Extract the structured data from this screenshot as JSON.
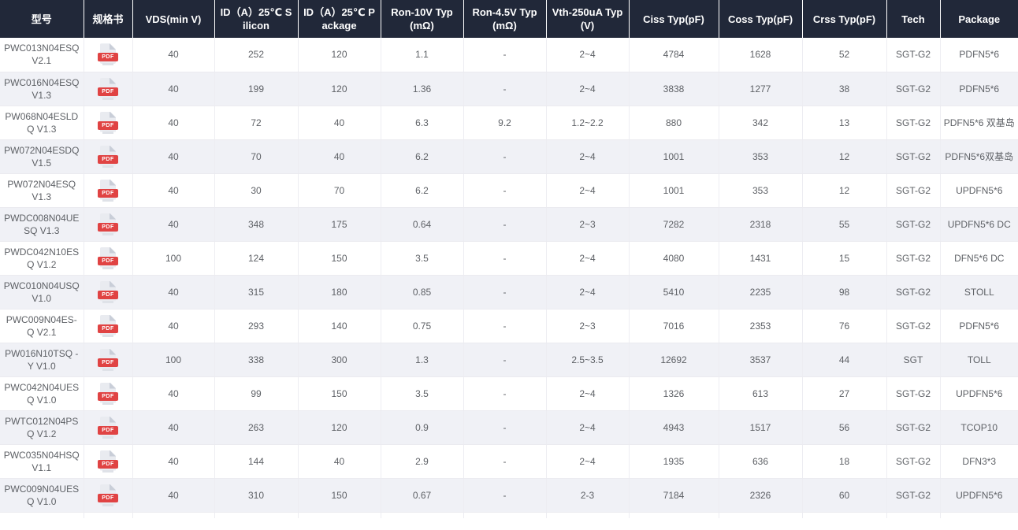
{
  "table": {
    "pdf_icon_label": "PDF",
    "columns": [
      {
        "key": "model",
        "label": "型号"
      },
      {
        "key": "datasheet",
        "label": "规格书"
      },
      {
        "key": "vds",
        "label": "VDS(min V)"
      },
      {
        "key": "id_silicon",
        "label": "ID（A）25℃ Silicon"
      },
      {
        "key": "id_package",
        "label": "ID（A）25℃ Package"
      },
      {
        "key": "ron_10v",
        "label": "Ron-10V Typ(mΩ)"
      },
      {
        "key": "ron_45v",
        "label": "Ron-4.5V Typ(mΩ)"
      },
      {
        "key": "vth",
        "label": "Vth-250uA Typ(V)"
      },
      {
        "key": "ciss",
        "label": "Ciss Typ(pF)"
      },
      {
        "key": "coss",
        "label": "Coss Typ(pF)"
      },
      {
        "key": "crss",
        "label": "Crss Typ(pF)"
      },
      {
        "key": "tech",
        "label": "Tech"
      },
      {
        "key": "package",
        "label": "Package"
      }
    ],
    "rows": [
      {
        "model": "PWC013N04ESQ V2.1",
        "vds": "40",
        "id_silicon": "252",
        "id_package": "120",
        "ron_10v": "1.1",
        "ron_45v": "-",
        "vth": "2~4",
        "ciss": "4784",
        "coss": "1628",
        "crss": "52",
        "tech": "SGT-G2",
        "package": "PDFN5*6"
      },
      {
        "model": "PWC016N04ESQ V1.3",
        "vds": "40",
        "id_silicon": "199",
        "id_package": "120",
        "ron_10v": "1.36",
        "ron_45v": "-",
        "vth": "2~4",
        "ciss": "3838",
        "coss": "1277",
        "crss": "38",
        "tech": "SGT-G2",
        "package": "PDFN5*6"
      },
      {
        "model": "PW068N04ESLDQ V1.3",
        "vds": "40",
        "id_silicon": "72",
        "id_package": "40",
        "ron_10v": "6.3",
        "ron_45v": "9.2",
        "vth": "1.2~2.2",
        "ciss": "880",
        "coss": "342",
        "crss": "13",
        "tech": "SGT-G2",
        "package": "PDFN5*6 双基岛"
      },
      {
        "model": "PW072N04ESDQ V1.5",
        "vds": "40",
        "id_silicon": "70",
        "id_package": "40",
        "ron_10v": "6.2",
        "ron_45v": "-",
        "vth": "2~4",
        "ciss": "1001",
        "coss": "353",
        "crss": "12",
        "tech": "SGT-G2",
        "package": "PDFN5*6双基岛"
      },
      {
        "model": "PW072N04ESQ V1.3",
        "vds": "40",
        "id_silicon": "30",
        "id_package": "70",
        "ron_10v": "6.2",
        "ron_45v": "-",
        "vth": "2~4",
        "ciss": "1001",
        "coss": "353",
        "crss": "12",
        "tech": "SGT-G2",
        "package": "UPDFN5*6"
      },
      {
        "model": "PWDC008N04UESQ V1.3",
        "vds": "40",
        "id_silicon": "348",
        "id_package": "175",
        "ron_10v": "0.64",
        "ron_45v": "-",
        "vth": "2~3",
        "ciss": "7282",
        "coss": "2318",
        "crss": "55",
        "tech": "SGT-G2",
        "package": "UPDFN5*6 DC"
      },
      {
        "model": "PWDC042N10ESQ V1.2",
        "vds": "100",
        "id_silicon": "124",
        "id_package": "150",
        "ron_10v": "3.5",
        "ron_45v": "-",
        "vth": "2~4",
        "ciss": "4080",
        "coss": "1431",
        "crss": "15",
        "tech": "SGT-G2",
        "package": "DFN5*6 DC"
      },
      {
        "model": "PWC010N04USQ V1.0",
        "vds": "40",
        "id_silicon": "315",
        "id_package": "180",
        "ron_10v": "0.85",
        "ron_45v": "-",
        "vth": "2~4",
        "ciss": "5410",
        "coss": "2235",
        "crss": "98",
        "tech": "SGT-G2",
        "package": "STOLL"
      },
      {
        "model": "PWC009N04ES-Q V2.1",
        "vds": "40",
        "id_silicon": "293",
        "id_package": "140",
        "ron_10v": "0.75",
        "ron_45v": "-",
        "vth": "2~3",
        "ciss": "7016",
        "coss": "2353",
        "crss": "76",
        "tech": "SGT-G2",
        "package": "PDFN5*6"
      },
      {
        "model": "PW016N10TSQ -Y V1.0",
        "vds": "100",
        "id_silicon": "338",
        "id_package": "300",
        "ron_10v": "1.3",
        "ron_45v": "-",
        "vth": "2.5~3.5",
        "ciss": "12692",
        "coss": "3537",
        "crss": "44",
        "tech": "SGT",
        "package": "TOLL"
      },
      {
        "model": "PWC042N04UESQ V1.0",
        "vds": "40",
        "id_silicon": "99",
        "id_package": "150",
        "ron_10v": "3.5",
        "ron_45v": "-",
        "vth": "2~4",
        "ciss": "1326",
        "coss": "613",
        "crss": "27",
        "tech": "SGT-G2",
        "package": "UPDFN5*6"
      },
      {
        "model": "PWTC012N04PSQ V1.2",
        "vds": "40",
        "id_silicon": "263",
        "id_package": "120",
        "ron_10v": "0.9",
        "ron_45v": "-",
        "vth": "2~4",
        "ciss": "4943",
        "coss": "1517",
        "crss": "56",
        "tech": "SGT-G2",
        "package": "TCOP10"
      },
      {
        "model": "PWC035N04HSQ V1.1",
        "vds": "40",
        "id_silicon": "144",
        "id_package": "40",
        "ron_10v": "2.9",
        "ron_45v": "-",
        "vth": "2~4",
        "ciss": "1935",
        "coss": "636",
        "crss": "18",
        "tech": "SGT-G2",
        "package": "DFN3*3"
      },
      {
        "model": "PWC009N04UESQ V1.0",
        "vds": "40",
        "id_silicon": "310",
        "id_package": "150",
        "ron_10v": "0.67",
        "ron_45v": "-",
        "vth": "2-3",
        "ciss": "7184",
        "coss": "2326",
        "crss": "60",
        "tech": "SGT-G2",
        "package": "UPDFN5*6"
      }
    ]
  },
  "colors": {
    "header_bg": "#212839",
    "header_text": "#ffffff",
    "row_alt_bg": "#f0f1f6",
    "body_text": "#5e6166",
    "pdf_red": "#e04343"
  }
}
